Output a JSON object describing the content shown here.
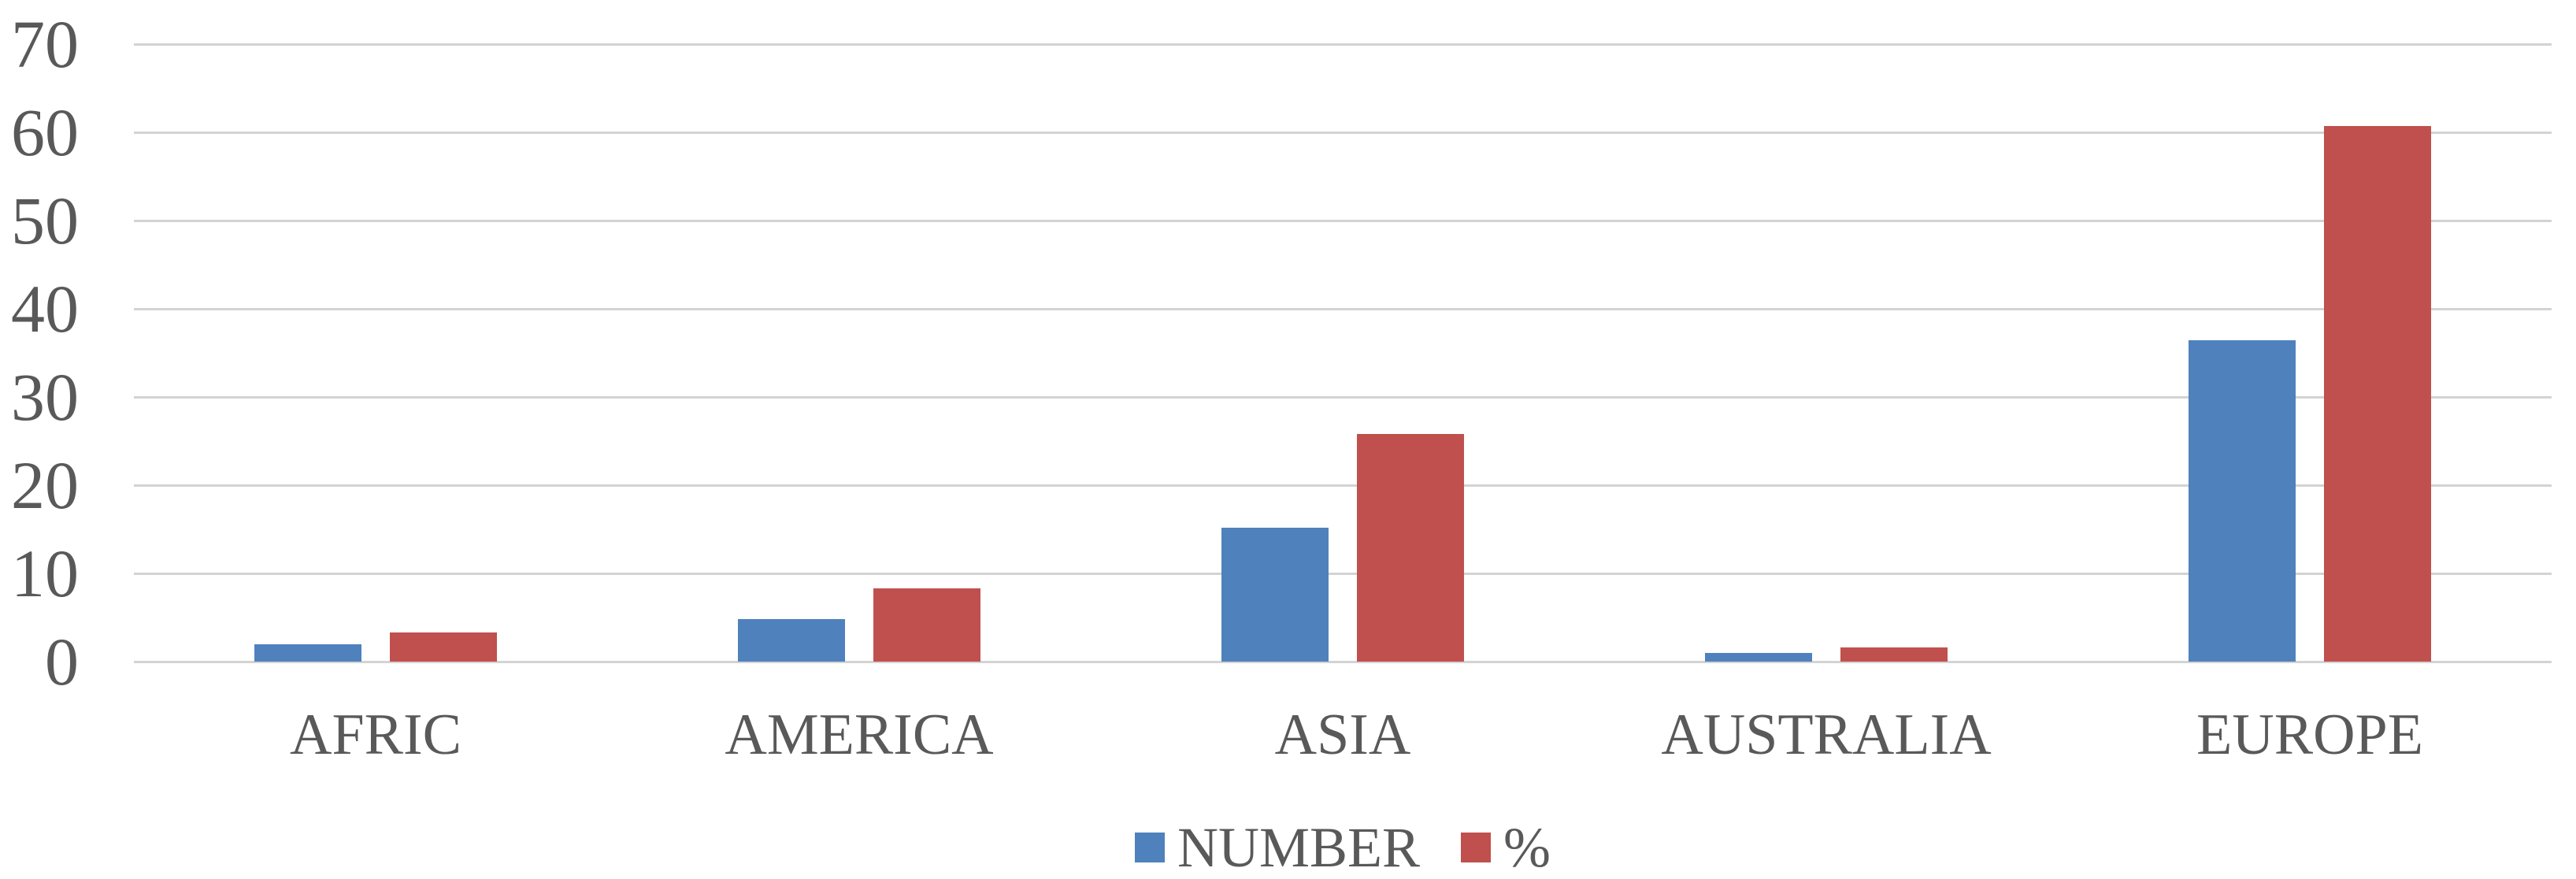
{
  "chart_data": {
    "type": "bar",
    "title": "",
    "xlabel": "",
    "ylabel": "",
    "categories": [
      "AFRIC",
      "AMERICA",
      "ASIA",
      "AUSTRALIA",
      "EUROPE"
    ],
    "series": [
      {
        "name": "NUMBER",
        "color": "#4F81BD",
        "values": [
          2,
          4.8,
          15.2,
          1,
          36.4
        ]
      },
      {
        "name": "%",
        "color": "#C0504D",
        "values": [
          3.3,
          8.3,
          25.8,
          1.6,
          60.7
        ]
      }
    ],
    "ylim": [
      0,
      70
    ],
    "yticks": [
      0,
      10,
      20,
      30,
      40,
      50,
      60,
      70
    ],
    "grid": "horizontal",
    "legend_position": "bottom-center",
    "colors": {
      "gridline": "#d3d3d3",
      "text": "#595959",
      "background": "#ffffff"
    }
  }
}
